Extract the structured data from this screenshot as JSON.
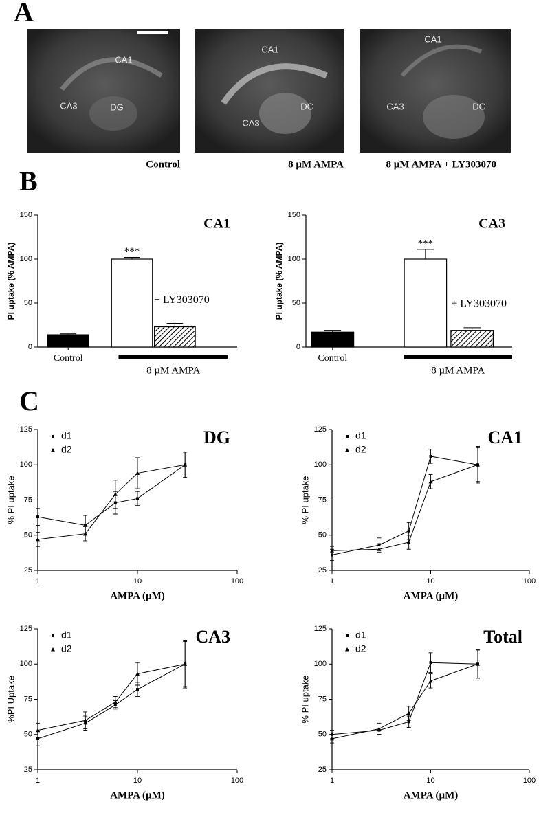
{
  "panels": {
    "a": "A",
    "b": "B",
    "c": "C"
  },
  "images": [
    {
      "caption": "Control",
      "labels": [
        "CA1",
        "CA3",
        "DG"
      ]
    },
    {
      "caption": "8 µM AMPA",
      "labels": [
        "CA1",
        "DG",
        "CA3"
      ]
    },
    {
      "caption": "8 µM AMPA + LY303070",
      "labels": [
        "CA1",
        "CA3",
        "DG"
      ]
    }
  ],
  "chart_data": [
    {
      "type": "bar",
      "title": "CA1",
      "ylabel": "PI uptake (% AMPA)",
      "categories": [
        "Control",
        null,
        null
      ],
      "values": [
        14,
        100,
        23
      ],
      "errors": [
        1,
        2,
        4
      ],
      "styles": [
        "filled",
        "open",
        "hatched"
      ],
      "group_label": "8 µM AMPA",
      "annotations": [
        "***",
        "+ LY303070"
      ],
      "ylim": [
        0,
        150
      ],
      "yticks": [
        0,
        50,
        100,
        150
      ]
    },
    {
      "type": "bar",
      "title": "CA3",
      "ylabel": "PI uptake (% AMPA)",
      "categories": [
        "Control",
        null,
        null
      ],
      "values": [
        17,
        100,
        19
      ],
      "errors": [
        2,
        11,
        3
      ],
      "styles": [
        "filled",
        "open",
        "hatched"
      ],
      "group_label": "8 µM AMPA",
      "annotations": [
        "***",
        "+ LY303070"
      ],
      "ylim": [
        0,
        150
      ],
      "yticks": [
        0,
        50,
        100,
        150
      ]
    },
    {
      "type": "line",
      "title": "DG",
      "xlabel": "AMPA (µM)",
      "ylabel": "% PI uptake",
      "x": [
        1,
        3,
        6,
        10,
        30
      ],
      "xlog": true,
      "xlim": [
        1,
        100
      ],
      "xticks": [
        1,
        10,
        100
      ],
      "ylim": [
        25,
        125
      ],
      "yticks": [
        25,
        50,
        75,
        100,
        125
      ],
      "legend": "upper left",
      "series": [
        {
          "name": "d1",
          "marker": "square",
          "color": "#000000",
          "values": [
            63,
            57,
            73,
            76,
            100
          ],
          "errors": [
            6,
            7,
            8,
            5,
            9
          ]
        },
        {
          "name": "d2",
          "marker": "triangle",
          "color": "#000000",
          "values": [
            47,
            51,
            79,
            94,
            100
          ],
          "errors": [
            5,
            5,
            10,
            11,
            9
          ]
        }
      ]
    },
    {
      "type": "line",
      "title": "CA1",
      "xlabel": "AMPA (µM)",
      "ylabel": "% PI uptake",
      "x": [
        1,
        3,
        6,
        10,
        30
      ],
      "xlog": true,
      "xlim": [
        1,
        100
      ],
      "xticks": [
        1,
        10,
        100
      ],
      "ylim": [
        25,
        125
      ],
      "yticks": [
        25,
        50,
        75,
        100,
        125
      ],
      "legend": "upper left",
      "series": [
        {
          "name": "d1",
          "marker": "square",
          "color": "#000000",
          "values": [
            36,
            43,
            53,
            106,
            100
          ],
          "errors": [
            4,
            5,
            6,
            5,
            13
          ]
        },
        {
          "name": "d2",
          "marker": "triangle",
          "color": "#000000",
          "values": [
            39,
            40,
            45,
            88,
            100
          ],
          "errors": [
            3,
            4,
            5,
            5,
            12
          ]
        }
      ]
    },
    {
      "type": "line",
      "title": "CA3",
      "xlabel": "AMPA (µM)",
      "ylabel": "%PI Uptake",
      "x": [
        1,
        3,
        6,
        10,
        30
      ],
      "xlog": true,
      "xlim": [
        1,
        100
      ],
      "xticks": [
        1,
        10,
        100
      ],
      "ylim": [
        25,
        125
      ],
      "yticks": [
        25,
        50,
        75,
        100,
        125
      ],
      "legend": "upper left",
      "series": [
        {
          "name": "d1",
          "marker": "square",
          "color": "#000000",
          "values": [
            47,
            58,
            71,
            82,
            100
          ],
          "errors": [
            5,
            5,
            3,
            5,
            16
          ]
        },
        {
          "name": "d2",
          "marker": "triangle",
          "color": "#000000",
          "values": [
            53,
            60,
            73,
            93,
            100
          ],
          "errors": [
            5,
            6,
            4,
            8,
            17
          ]
        }
      ]
    },
    {
      "type": "line",
      "title": "Total",
      "xlabel": "AMPA (µM)",
      "ylabel": "% PI uptake",
      "x": [
        1,
        3,
        6,
        10,
        30
      ],
      "xlog": true,
      "xlim": [
        1,
        100
      ],
      "xticks": [
        1,
        10,
        100
      ],
      "ylim": [
        25,
        125
      ],
      "yticks": [
        25,
        50,
        75,
        100,
        125
      ],
      "legend": "upper left",
      "series": [
        {
          "name": "d1",
          "marker": "square",
          "color": "#000000",
          "values": [
            50,
            53,
            59,
            101,
            100
          ],
          "errors": [
            3,
            3,
            4,
            7,
            10
          ]
        },
        {
          "name": "d2",
          "marker": "triangle",
          "color": "#000000",
          "values": [
            47,
            54,
            65,
            88,
            100
          ],
          "errors": [
            3,
            4,
            5,
            5,
            10
          ]
        }
      ]
    }
  ]
}
